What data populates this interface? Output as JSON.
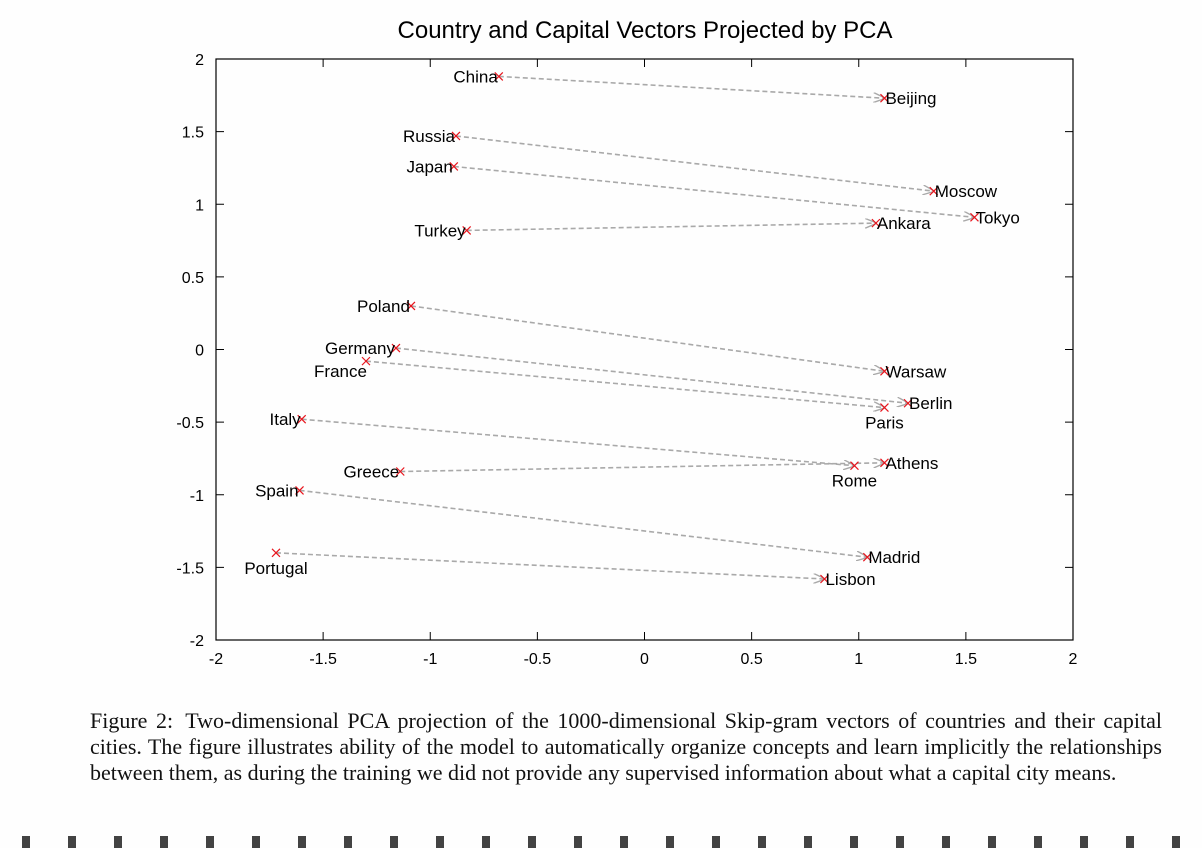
{
  "chart_data": {
    "type": "scatter",
    "title": "Country and Capital Vectors Projected by PCA",
    "xlabel": "",
    "ylabel": "",
    "xlim": [
      -2,
      2
    ],
    "ylim": [
      -2,
      2
    ],
    "xticks": [
      "-2",
      "-1.5",
      "-1",
      "-0.5",
      "0",
      "0.5",
      "1",
      "1.5",
      "2"
    ],
    "yticks": [
      "2",
      "1.5",
      "1",
      "0.5",
      "0",
      "-0.5",
      "-1",
      "-1.5",
      "-2"
    ],
    "grid": false,
    "marker_color": "#e8141c",
    "arrow_color": "#a9a9a9",
    "points": [
      {
        "label": "China",
        "x": -0.68,
        "y": 1.88,
        "anchor": "end"
      },
      {
        "label": "Beijing",
        "x": 1.12,
        "y": 1.73,
        "anchor": "start"
      },
      {
        "label": "Russia",
        "x": -0.88,
        "y": 1.47,
        "anchor": "end"
      },
      {
        "label": "Moscow",
        "x": 1.35,
        "y": 1.09,
        "anchor": "start"
      },
      {
        "label": "Japan",
        "x": -0.89,
        "y": 1.26,
        "anchor": "end"
      },
      {
        "label": "Tokyo",
        "x": 1.54,
        "y": 0.91,
        "anchor": "start"
      },
      {
        "label": "Turkey",
        "x": -0.83,
        "y": 0.82,
        "anchor": "end"
      },
      {
        "label": "Ankara",
        "x": 1.08,
        "y": 0.87,
        "anchor": "start"
      },
      {
        "label": "Poland",
        "x": -1.09,
        "y": 0.3,
        "anchor": "end"
      },
      {
        "label": "Warsaw",
        "x": 1.12,
        "y": -0.15,
        "anchor": "start"
      },
      {
        "label": "Germany",
        "x": -1.16,
        "y": 0.01,
        "anchor": "end"
      },
      {
        "label": "Berlin",
        "x": 1.23,
        "y": -0.37,
        "anchor": "start"
      },
      {
        "label": "France",
        "x": -1.3,
        "y": -0.08,
        "anchor": "end-below"
      },
      {
        "label": "Paris",
        "x": 1.12,
        "y": -0.4,
        "anchor": "middle-below"
      },
      {
        "label": "Italy",
        "x": -1.6,
        "y": -0.48,
        "anchor": "end"
      },
      {
        "label": "Athens",
        "x": 1.12,
        "y": -0.78,
        "anchor": "start"
      },
      {
        "label": "Greece",
        "x": -1.14,
        "y": -0.84,
        "anchor": "end"
      },
      {
        "label": "Rome",
        "x": 0.98,
        "y": -0.8,
        "anchor": "middle-below"
      },
      {
        "label": "Spain",
        "x": -1.61,
        "y": -0.97,
        "anchor": "end"
      },
      {
        "label": "Madrid",
        "x": 1.04,
        "y": -1.43,
        "anchor": "start"
      },
      {
        "label": "Portugal",
        "x": -1.72,
        "y": -1.4,
        "anchor": "middle-below"
      },
      {
        "label": "Lisbon",
        "x": 0.84,
        "y": -1.58,
        "anchor": "start"
      }
    ],
    "arrows": [
      {
        "from": "China",
        "to": "Beijing"
      },
      {
        "from": "Russia",
        "to": "Moscow"
      },
      {
        "from": "Japan",
        "to": "Tokyo"
      },
      {
        "from": "Turkey",
        "to": "Ankara"
      },
      {
        "from": "Poland",
        "to": "Warsaw"
      },
      {
        "from": "Germany",
        "to": "Berlin"
      },
      {
        "from": "France",
        "to": "Paris"
      },
      {
        "from": "Italy",
        "to": "Rome"
      },
      {
        "from": "Greece",
        "to": "Athens"
      },
      {
        "from": "Spain",
        "to": "Madrid"
      },
      {
        "from": "Portugal",
        "to": "Lisbon"
      }
    ]
  },
  "caption": {
    "label": "Figure 2:",
    "text": "Two-dimensional PCA projection of the 1000-dimensional Skip-gram vectors of countries and their capital cities. The figure illustrates ability of the model to automatically organize concepts and learn implicitly the relationships between them, as during the training we did not provide any supervised information about what a capital city means."
  }
}
